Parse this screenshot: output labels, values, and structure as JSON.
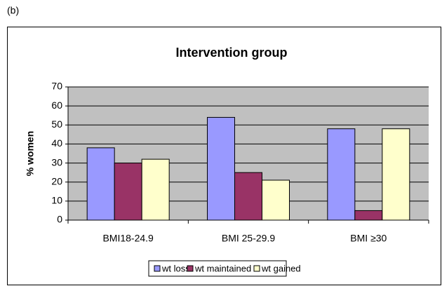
{
  "chart_data": {
    "type": "bar",
    "panel_label": "(b)",
    "title": "Intervention group",
    "y_label": "% women",
    "categories": [
      "BMI18-24.9",
      "BMI 25-29.9",
      "BMI ≥30"
    ],
    "series": [
      {
        "name": "wt loss",
        "color": "#9999ff",
        "values": [
          38,
          54,
          48
        ]
      },
      {
        "name": "wt maintained",
        "color": "#993366",
        "values": [
          30,
          25,
          5
        ]
      },
      {
        "name": "wt gained",
        "color": "#ffffcc",
        "values": [
          32,
          21,
          48
        ]
      }
    ],
    "ylim": [
      0,
      70
    ],
    "yticks": [
      0,
      10,
      20,
      30,
      40,
      50,
      60,
      70
    ],
    "grid": true,
    "legend": "bottom"
  }
}
